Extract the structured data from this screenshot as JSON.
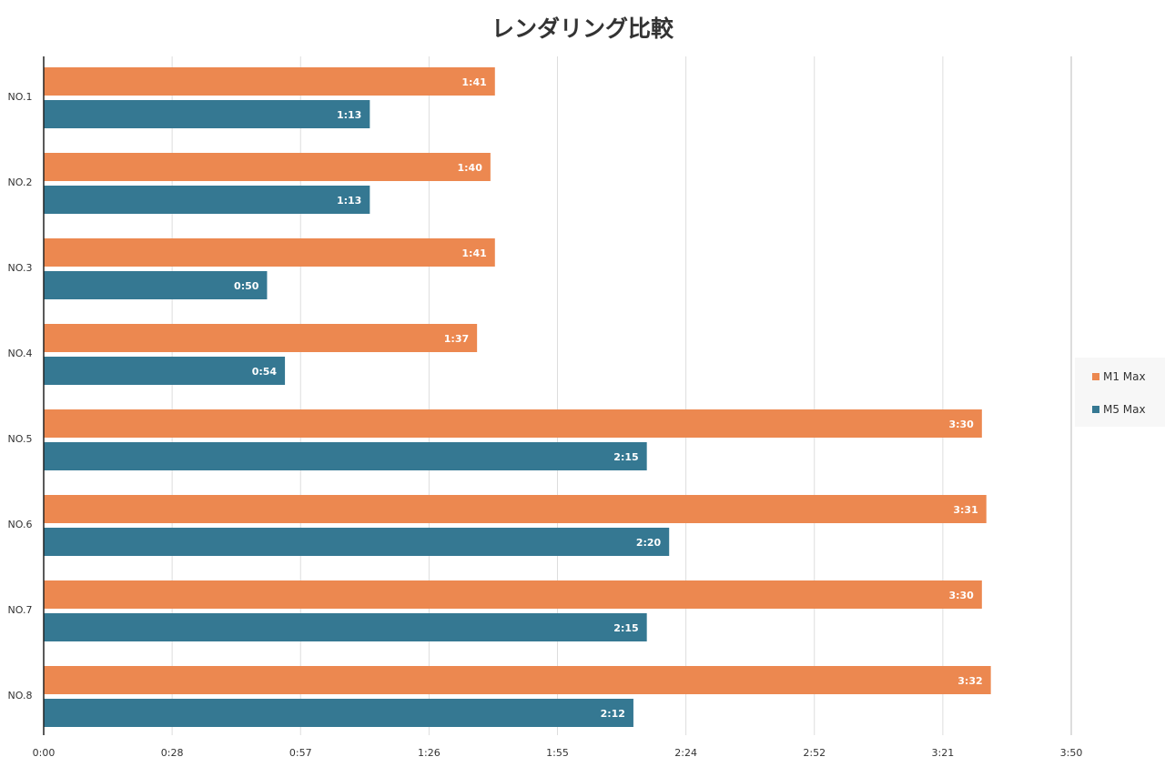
{
  "chart_data": {
    "type": "bar",
    "orientation": "horizontal",
    "title": "レンダリング比較",
    "categories": [
      "NO.1",
      "NO.2",
      "NO.3",
      "NO.4",
      "NO.5",
      "NO.6",
      "NO.7",
      "NO.8"
    ],
    "series": [
      {
        "name": "M1 Max",
        "color": "#EC8850",
        "values": [
          "1:41",
          "1:40",
          "1:41",
          "1:37",
          "3:30",
          "3:31",
          "3:30",
          "3:32"
        ]
      },
      {
        "name": "M5 Max",
        "color": "#357892",
        "values": [
          "1:13",
          "1:13",
          "0:50",
          "0:54",
          "2:15",
          "2:20",
          "2:15",
          "2:12"
        ]
      }
    ],
    "x_ticks": [
      "0:00",
      "0:28",
      "0:57",
      "1:26",
      "1:55",
      "2:24",
      "2:52",
      "3:21",
      "3:50"
    ],
    "xlim": [
      "0:00",
      "3:50"
    ],
    "grid": true,
    "legend_position": "right"
  }
}
